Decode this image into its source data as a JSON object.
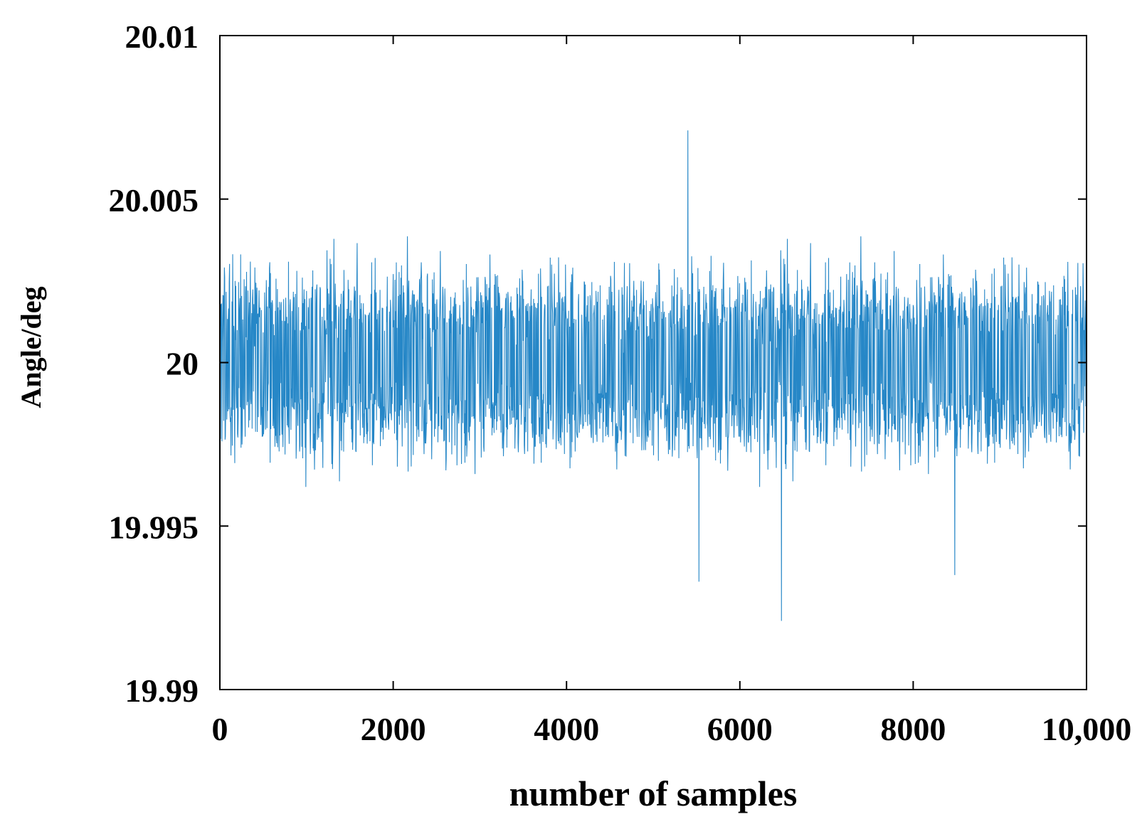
{
  "chart_data": {
    "type": "line",
    "title": "",
    "xlabel": "number of samples",
    "ylabel": "Angle/deg",
    "xlim": [
      0,
      10000
    ],
    "ylim": [
      19.99,
      20.01
    ],
    "x_ticks": [
      0,
      2000,
      4000,
      6000,
      8000,
      10000
    ],
    "x_tick_labels": [
      "0",
      "2000",
      "4000",
      "6000",
      "8000",
      "10,000"
    ],
    "y_ticks": [
      19.99,
      19.995,
      20,
      20.005,
      20.01
    ],
    "y_tick_labels": [
      "19.99",
      "19.995",
      "20",
      "20.005",
      "20.01"
    ],
    "grid": false,
    "legend": "none",
    "series": [
      {
        "color": "#0072bd",
        "n_points": 10000,
        "mean": 20.0,
        "std": 0.0012,
        "max": 20.0071,
        "min": 19.9921,
        "extremes": [
          {
            "x": 5400,
            "y": 20.0071
          },
          {
            "x": 6480,
            "y": 19.9921
          },
          {
            "x": 5530,
            "y": 19.9933
          },
          {
            "x": 8480,
            "y": 19.9935
          }
        ]
      }
    ]
  }
}
